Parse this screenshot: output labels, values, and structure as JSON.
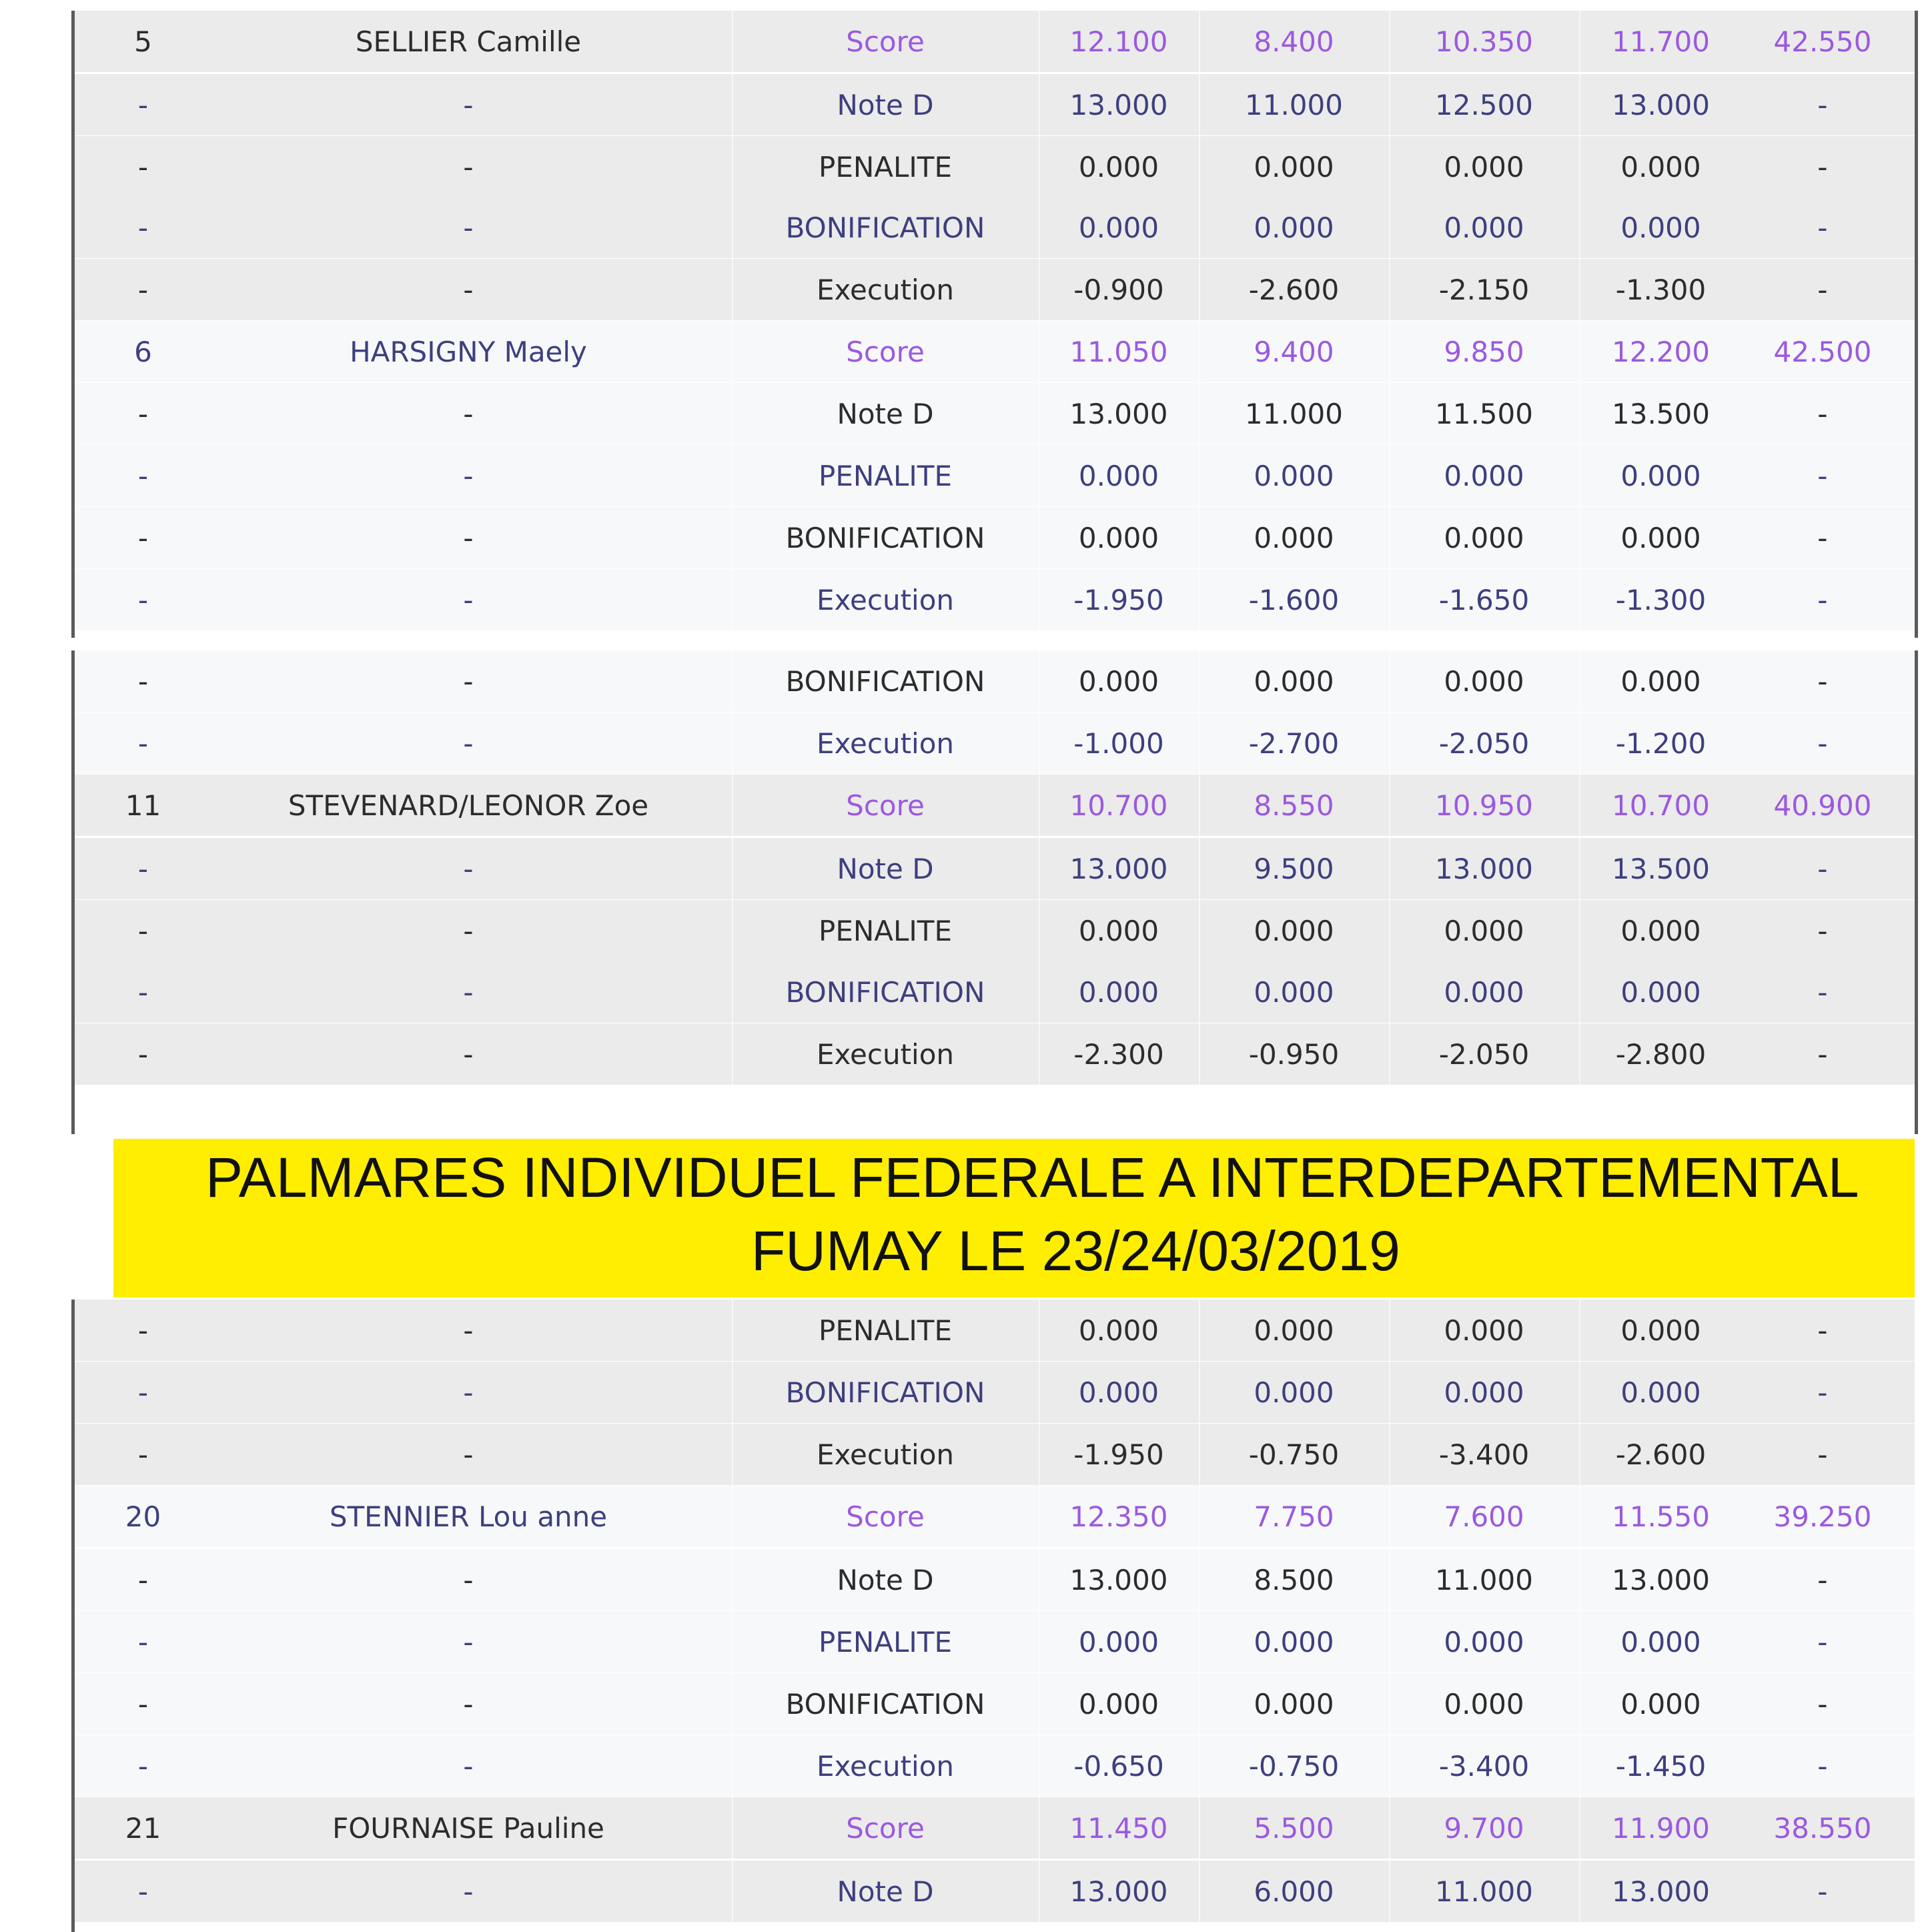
{
  "banner": {
    "line1": "PALMARES INDIVIDUEL FEDERALE A INTERDEPARTEMENTAL",
    "line2": "FUMAY LE 23/24/03/2019"
  },
  "blocks": [
    {
      "rows": [
        {
          "rank": "5",
          "name": "SELLIER Camille",
          "label": "Score",
          "v": [
            "12.100",
            "8.400",
            "10.350",
            "11.700"
          ],
          "total": "42.550",
          "type": "score",
          "bg": "grey",
          "name_color": "dark",
          "label_color": "score"
        },
        {
          "rank": "-",
          "name": "-",
          "label": "Note D",
          "v": [
            "13.000",
            "11.000",
            "12.500",
            "13.000"
          ],
          "total": "-",
          "type": "detail",
          "bg": "grey",
          "name_color": "navy",
          "label_color": "navy"
        },
        {
          "rank": "-",
          "name": "-",
          "label": "PENALITE",
          "v": [
            "0.000",
            "0.000",
            "0.000",
            "0.000"
          ],
          "total": "-",
          "type": "detail",
          "bg": "grey",
          "name_color": "dark",
          "label_color": "dark"
        },
        {
          "rank": "-",
          "name": "-",
          "label": "BONIFICATION",
          "v": [
            "0.000",
            "0.000",
            "0.000",
            "0.000"
          ],
          "total": "-",
          "type": "detail",
          "bg": "grey",
          "name_color": "navy",
          "label_color": "navy"
        },
        {
          "rank": "-",
          "name": "-",
          "label": "Execution",
          "v": [
            "-0.900",
            "-2.600",
            "-2.150",
            "-1.300"
          ],
          "total": "-",
          "type": "detail",
          "bg": "grey",
          "name_color": "dark",
          "label_color": "dark"
        },
        {
          "rank": "6",
          "name": "HARSIGNY Maely",
          "label": "Score",
          "v": [
            "11.050",
            "9.400",
            "9.850",
            "12.200"
          ],
          "total": "42.500",
          "type": "score",
          "bg": "white",
          "name_color": "navy",
          "label_color": "score"
        },
        {
          "rank": "-",
          "name": "-",
          "label": "Note D",
          "v": [
            "13.000",
            "11.000",
            "11.500",
            "13.500"
          ],
          "total": "-",
          "type": "detail",
          "bg": "white",
          "name_color": "dark",
          "label_color": "dark"
        },
        {
          "rank": "-",
          "name": "-",
          "label": "PENALITE",
          "v": [
            "0.000",
            "0.000",
            "0.000",
            "0.000"
          ],
          "total": "-",
          "type": "detail",
          "bg": "white",
          "name_color": "navy",
          "label_color": "navy"
        },
        {
          "rank": "-",
          "name": "-",
          "label": "BONIFICATION",
          "v": [
            "0.000",
            "0.000",
            "0.000",
            "0.000"
          ],
          "total": "-",
          "type": "detail",
          "bg": "white",
          "name_color": "dark",
          "label_color": "dark"
        },
        {
          "rank": "-",
          "name": "-",
          "label": "Execution",
          "v": [
            "-1.950",
            "-1.600",
            "-1.650",
            "-1.300"
          ],
          "total": "-",
          "type": "detail",
          "bg": "white",
          "name_color": "navy",
          "label_color": "navy"
        }
      ]
    },
    {
      "rows": [
        {
          "rank": "-",
          "name": "-",
          "label": "BONIFICATION",
          "v": [
            "0.000",
            "0.000",
            "0.000",
            "0.000"
          ],
          "total": "-",
          "type": "detail",
          "bg": "white",
          "name_color": "dark",
          "label_color": "dark"
        },
        {
          "rank": "-",
          "name": "-",
          "label": "Execution",
          "v": [
            "-1.000",
            "-2.700",
            "-2.050",
            "-1.200"
          ],
          "total": "-",
          "type": "detail",
          "bg": "white",
          "name_color": "navy",
          "label_color": "navy"
        },
        {
          "rank": "11",
          "name": "STEVENARD/LEONOR Zoe",
          "label": "Score",
          "v": [
            "10.700",
            "8.550",
            "10.950",
            "10.700"
          ],
          "total": "40.900",
          "type": "score",
          "bg": "grey",
          "name_color": "dark",
          "label_color": "score"
        },
        {
          "rank": "-",
          "name": "-",
          "label": "Note D",
          "v": [
            "13.000",
            "9.500",
            "13.000",
            "13.500"
          ],
          "total": "-",
          "type": "detail",
          "bg": "grey",
          "name_color": "navy",
          "label_color": "navy"
        },
        {
          "rank": "-",
          "name": "-",
          "label": "PENALITE",
          "v": [
            "0.000",
            "0.000",
            "0.000",
            "0.000"
          ],
          "total": "-",
          "type": "detail",
          "bg": "grey",
          "name_color": "dark",
          "label_color": "dark"
        },
        {
          "rank": "-",
          "name": "-",
          "label": "BONIFICATION",
          "v": [
            "0.000",
            "0.000",
            "0.000",
            "0.000"
          ],
          "total": "-",
          "type": "detail",
          "bg": "grey",
          "name_color": "navy",
          "label_color": "navy"
        },
        {
          "rank": "-",
          "name": "-",
          "label": "Execution",
          "v": [
            "-2.300",
            "-0.950",
            "-2.050",
            "-2.800"
          ],
          "total": "-",
          "type": "detail",
          "bg": "grey",
          "name_color": "dark",
          "label_color": "dark"
        }
      ]
    },
    {
      "rows": [
        {
          "rank": "-",
          "name": "-",
          "label": "PENALITE",
          "v": [
            "0.000",
            "0.000",
            "0.000",
            "0.000"
          ],
          "total": "-",
          "type": "detail",
          "bg": "grey",
          "name_color": "dark",
          "label_color": "dark"
        },
        {
          "rank": "-",
          "name": "-",
          "label": "BONIFICATION",
          "v": [
            "0.000",
            "0.000",
            "0.000",
            "0.000"
          ],
          "total": "-",
          "type": "detail",
          "bg": "grey",
          "name_color": "navy",
          "label_color": "navy"
        },
        {
          "rank": "-",
          "name": "-",
          "label": "Execution",
          "v": [
            "-1.950",
            "-0.750",
            "-3.400",
            "-2.600"
          ],
          "total": "-",
          "type": "detail",
          "bg": "grey",
          "name_color": "dark",
          "label_color": "dark"
        },
        {
          "rank": "20",
          "name": "STENNIER Lou anne",
          "label": "Score",
          "v": [
            "12.350",
            "7.750",
            "7.600",
            "11.550"
          ],
          "total": "39.250",
          "type": "score",
          "bg": "white",
          "name_color": "navy",
          "label_color": "score"
        },
        {
          "rank": "-",
          "name": "-",
          "label": "Note D",
          "v": [
            "13.000",
            "8.500",
            "11.000",
            "13.000"
          ],
          "total": "-",
          "type": "detail",
          "bg": "white",
          "name_color": "dark",
          "label_color": "dark"
        },
        {
          "rank": "-",
          "name": "-",
          "label": "PENALITE",
          "v": [
            "0.000",
            "0.000",
            "0.000",
            "0.000"
          ],
          "total": "-",
          "type": "detail",
          "bg": "white",
          "name_color": "navy",
          "label_color": "navy"
        },
        {
          "rank": "-",
          "name": "-",
          "label": "BONIFICATION",
          "v": [
            "0.000",
            "0.000",
            "0.000",
            "0.000"
          ],
          "total": "-",
          "type": "detail",
          "bg": "white",
          "name_color": "dark",
          "label_color": "dark"
        },
        {
          "rank": "-",
          "name": "-",
          "label": "Execution",
          "v": [
            "-0.650",
            "-0.750",
            "-3.400",
            "-1.450"
          ],
          "total": "-",
          "type": "detail",
          "bg": "white",
          "name_color": "navy",
          "label_color": "navy"
        },
        {
          "rank": "21",
          "name": "FOURNAISE Pauline",
          "label": "Score",
          "v": [
            "11.450",
            "5.500",
            "9.700",
            "11.900"
          ],
          "total": "38.550",
          "type": "score",
          "bg": "grey",
          "name_color": "dark",
          "label_color": "score"
        },
        {
          "rank": "-",
          "name": "-",
          "label": "Note D",
          "v": [
            "13.000",
            "6.000",
            "11.000",
            "13.000"
          ],
          "total": "-",
          "type": "detail",
          "bg": "grey",
          "name_color": "navy",
          "label_color": "navy"
        }
      ]
    }
  ]
}
